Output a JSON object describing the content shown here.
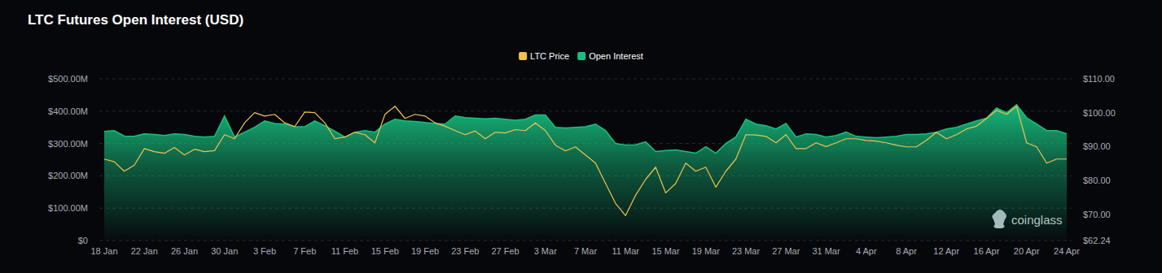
{
  "chart_data": {
    "type": "line",
    "title": "LTC Futures Open Interest (USD)",
    "annotations": [
      "coinglass"
    ],
    "categories": [
      "18 Jan",
      null,
      null,
      null,
      "22 Jan",
      null,
      null,
      null,
      "26 Jan",
      null,
      null,
      null,
      "30 Jan",
      null,
      null,
      null,
      "3 Feb",
      null,
      null,
      null,
      "7 Feb",
      null,
      null,
      null,
      "11 Feb",
      null,
      null,
      null,
      "15 Feb",
      null,
      null,
      null,
      "19 Feb",
      null,
      null,
      null,
      "23 Feb",
      null,
      null,
      null,
      "27 Feb",
      null,
      null,
      null,
      "3 Mar",
      null,
      null,
      null,
      "7 Mar",
      null,
      null,
      null,
      "11 Mar",
      null,
      null,
      null,
      "15 Mar",
      null,
      null,
      null,
      "19 Mar",
      null,
      null,
      null,
      "23 Mar",
      null,
      null,
      null,
      "27 Mar",
      null,
      null,
      null,
      "31 Mar",
      null,
      null,
      null,
      "4 Apr",
      null,
      null,
      null,
      "8 Apr",
      null,
      null,
      null,
      "12 Apr",
      null,
      null,
      null,
      "16 Apr",
      null,
      null,
      null,
      "20 Apr",
      null,
      null,
      null,
      "24 Apr"
    ],
    "series": [
      {
        "name": "LTC Price",
        "color": "#f2c14e",
        "type": "line",
        "axis": "y2",
        "values": [
          86.3,
          85.5,
          82.7,
          84.5,
          89.4,
          88.5,
          88.0,
          89.7,
          87.5,
          89.2,
          88.5,
          88.8,
          93.5,
          92.3,
          97.0,
          100.0,
          99.0,
          99.5,
          97.0,
          95.9,
          100.2,
          100.0,
          97.0,
          92.3,
          92.8,
          94.2,
          93.5,
          91.1,
          99.5,
          101.9,
          98.3,
          99.5,
          99.0,
          97.0,
          96.0,
          94.7,
          93.5,
          94.6,
          92.3,
          94.2,
          94.0,
          95.0,
          94.7,
          97.0,
          94.7,
          90.4,
          88.7,
          89.9,
          87.5,
          85.1,
          79.1,
          73.2,
          69.6,
          75.6,
          80.3,
          83.9,
          76.3,
          79.1,
          85.1,
          82.7,
          83.9,
          78.0,
          82.7,
          86.3,
          93.5,
          93.4,
          93.0,
          91.1,
          93.5,
          89.4,
          89.4,
          91.1,
          90.0,
          91.1,
          92.3,
          92.3,
          91.8,
          91.6,
          91.1,
          90.4,
          89.9,
          89.9,
          91.8,
          94.2,
          92.3,
          93.5,
          95.2,
          96.0,
          98.3,
          100.7,
          99.5,
          101.9,
          91.1,
          89.9,
          85.1,
          86.3,
          86.3
        ]
      },
      {
        "name": "Open Interest",
        "color": "#17c07f",
        "type": "area",
        "values": [
          337,
          340,
          323,
          322,
          330,
          328,
          325,
          330,
          328,
          322,
          320,
          322,
          385,
          320,
          335,
          350,
          370,
          362,
          360,
          352,
          352,
          370,
          355,
          338,
          320,
          335,
          340,
          335,
          360,
          375,
          370,
          368,
          365,
          362,
          360,
          385,
          380,
          378,
          376,
          378,
          375,
          372,
          375,
          388,
          388,
          350,
          348,
          350,
          352,
          360,
          340,
          300,
          295,
          296,
          305,
          275,
          278,
          280,
          275,
          270,
          290,
          270,
          300,
          320,
          375,
          360,
          355,
          345,
          362,
          320,
          330,
          328,
          320,
          325,
          335,
          322,
          320,
          318,
          320,
          322,
          328,
          328,
          330,
          335,
          345,
          350,
          360,
          370,
          378,
          410,
          395,
          420,
          380,
          360,
          340,
          340,
          330
        ]
      }
    ],
    "ylim": [
      0,
      500
    ],
    "yticks": [
      {
        "value": 0,
        "label": "$0"
      },
      {
        "value": 100,
        "label": "$100.00M"
      },
      {
        "value": 200,
        "label": "$200.00M"
      },
      {
        "value": 300,
        "label": "$300.00M"
      },
      {
        "value": 400,
        "label": "$400.00M"
      },
      {
        "value": 500,
        "label": "$500.00M"
      }
    ],
    "y2lim": [
      62.24,
      110
    ],
    "y2ticks": [
      {
        "value": 62.24,
        "label": "$62.24"
      },
      {
        "value": 70,
        "label": "$70.00"
      },
      {
        "value": 80,
        "label": "$80.00"
      },
      {
        "value": 90,
        "label": "$90.00"
      },
      {
        "value": 100,
        "label": "$100.00"
      },
      {
        "value": 110,
        "label": "$110.00"
      }
    ],
    "grid": true,
    "legend": "top"
  }
}
